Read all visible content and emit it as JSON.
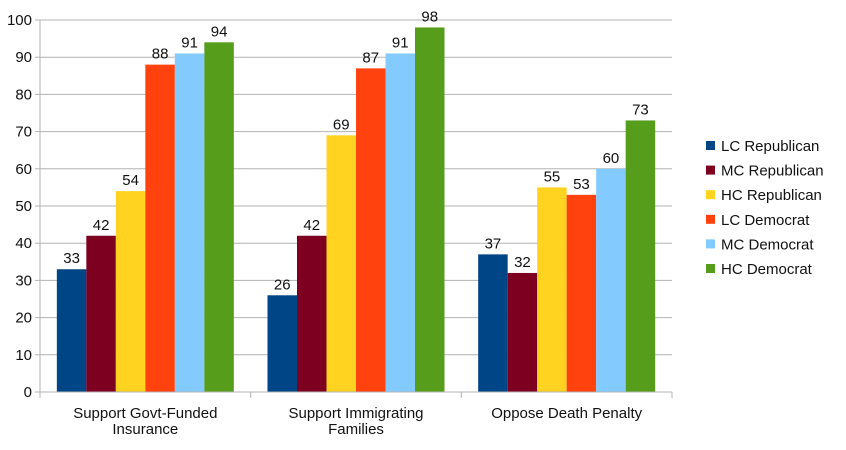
{
  "chart_data": {
    "type": "bar",
    "title": "",
    "xlabel": "",
    "ylabel": "",
    "ylim": [
      0,
      100
    ],
    "yticks": [
      0,
      10,
      20,
      30,
      40,
      50,
      60,
      70,
      80,
      90,
      100
    ],
    "grid": true,
    "legend_position": "right",
    "categories": [
      [
        "Support Govt-Funded",
        "Insurance"
      ],
      [
        "Support Immigrating",
        "Families"
      ],
      [
        "Oppose Death Penalty"
      ]
    ],
    "series": [
      {
        "name": "LC Republican",
        "color": "#004586",
        "values": [
          33,
          26,
          37
        ]
      },
      {
        "name": "MC Republican",
        "color": "#7e0021",
        "values": [
          42,
          42,
          32
        ]
      },
      {
        "name": "HC Republican",
        "color": "#ffd320",
        "values": [
          54,
          69,
          55
        ]
      },
      {
        "name": "LC Democrat",
        "color": "#ff420e",
        "values": [
          88,
          87,
          53
        ]
      },
      {
        "name": "MC Democrat",
        "color": "#83caff",
        "values": [
          91,
          91,
          60
        ]
      },
      {
        "name": "HC Democrat",
        "color": "#579d1c",
        "values": [
          94,
          98,
          73
        ]
      }
    ]
  }
}
